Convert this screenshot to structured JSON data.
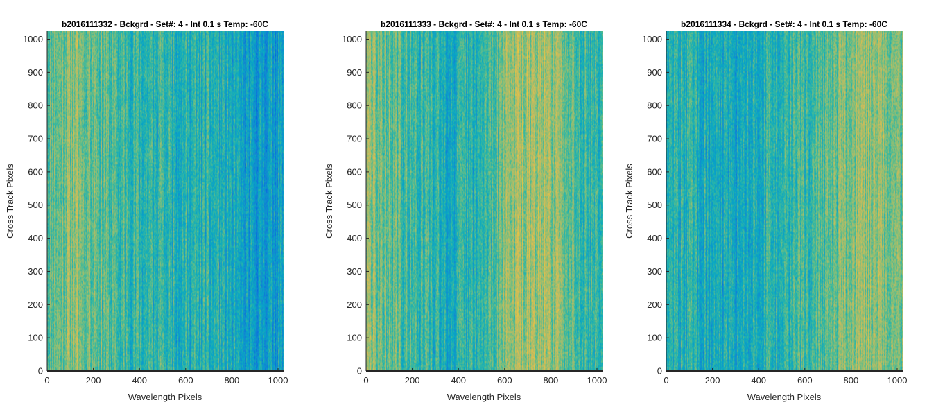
{
  "chart_data": [
    {
      "type": "heatmap",
      "title": "b2016111332 - Bckgrd - Set#: 4 - Int 0.1 s Temp: -60C",
      "xlabel": "Wavelength Pixels",
      "ylabel": "Cross Track Pixels",
      "xlim": [
        0,
        1024
      ],
      "ylim": [
        0,
        1024
      ],
      "xticks": [
        0,
        200,
        400,
        600,
        800,
        1000
      ],
      "yticks": [
        0,
        100,
        200,
        300,
        400,
        500,
        600,
        700,
        800,
        900,
        1000
      ],
      "colormap": "parula",
      "column_trend": [
        [
          0,
          0.55
        ],
        [
          120,
          0.62
        ],
        [
          200,
          0.58
        ],
        [
          300,
          0.5
        ],
        [
          450,
          0.46
        ],
        [
          550,
          0.45
        ],
        [
          700,
          0.44
        ],
        [
          800,
          0.4
        ],
        [
          850,
          0.33
        ],
        [
          950,
          0.34
        ],
        [
          1024,
          0.36
        ]
      ],
      "seed": 11
    },
    {
      "type": "heatmap",
      "title": "b2016111333 - Bckgrd - Set#: 4 - Int 0.1 s Temp: -60C",
      "xlabel": "Wavelength Pixels",
      "ylabel": "Cross Track Pixels",
      "xlim": [
        0,
        1024
      ],
      "ylim": [
        0,
        1024
      ],
      "xticks": [
        0,
        200,
        400,
        600,
        800,
        1000
      ],
      "yticks": [
        0,
        100,
        200,
        300,
        400,
        500,
        600,
        700,
        800,
        900,
        1000
      ],
      "colormap": "parula",
      "column_trend": [
        [
          0,
          0.62
        ],
        [
          100,
          0.55
        ],
        [
          250,
          0.47
        ],
        [
          400,
          0.42
        ],
        [
          500,
          0.45
        ],
        [
          600,
          0.62
        ],
        [
          750,
          0.66
        ],
        [
          850,
          0.6
        ],
        [
          950,
          0.5
        ],
        [
          1024,
          0.45
        ]
      ],
      "seed": 29
    },
    {
      "type": "heatmap",
      "title": "b2016111334 - Bckgrd - Set#: 4 - Int 0.1 s Temp: -60C",
      "xlabel": "Wavelength Pixels",
      "ylabel": "Cross Track Pixels",
      "xlim": [
        0,
        1024
      ],
      "ylim": [
        0,
        1024
      ],
      "xticks": [
        0,
        200,
        400,
        600,
        800,
        1000
      ],
      "yticks": [
        0,
        100,
        200,
        300,
        400,
        500,
        600,
        700,
        800,
        900,
        1000
      ],
      "colormap": "parula",
      "column_trend": [
        [
          0,
          0.45
        ],
        [
          150,
          0.42
        ],
        [
          280,
          0.38
        ],
        [
          400,
          0.44
        ],
        [
          600,
          0.5
        ],
        [
          750,
          0.56
        ],
        [
          850,
          0.64
        ],
        [
          950,
          0.62
        ],
        [
          1024,
          0.58
        ]
      ],
      "seed": 47
    }
  ]
}
